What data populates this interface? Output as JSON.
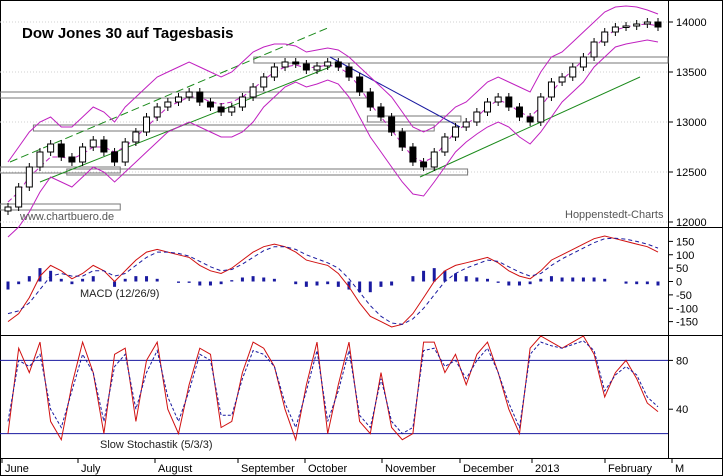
{
  "chart_data": [
    {
      "type": "candlestick",
      "title": "Dow Jones 30 auf Tagesbasis",
      "watermark_left": "www.chartbuero.de",
      "watermark_right": "Hoppenstedt-Charts",
      "yticks": [
        12000,
        12500,
        13000,
        13500,
        14000
      ],
      "ylim": [
        11950,
        14220
      ],
      "xlabels": [
        "June",
        "July",
        "August",
        "September",
        "October",
        "November",
        "December",
        "2013",
        "February",
        "M"
      ],
      "series": [
        {
          "name": "price",
          "values": [
            12150,
            12350,
            12550,
            12700,
            12780,
            12650,
            12600,
            12750,
            12820,
            12700,
            12600,
            12800,
            12900,
            13050,
            13150,
            13200,
            13250,
            13300,
            13200,
            13150,
            13100,
            13150,
            13250,
            13350,
            13450,
            13550,
            13600,
            13580,
            13520,
            13560,
            13600,
            13550,
            13450,
            13300,
            13150,
            13050,
            12900,
            12750,
            12600,
            12550,
            12700,
            12850,
            12950,
            13000,
            13100,
            13200,
            13250,
            13150,
            13050,
            13000,
            13250,
            13400,
            13450,
            13550,
            13650,
            13800,
            13900,
            13950,
            13960,
            13980,
            14000,
            13950
          ]
        },
        {
          "name": "bollinger_upper",
          "values": [
            12600,
            12750,
            12900,
            13000,
            13050,
            12950,
            12950,
            13050,
            13150,
            13100,
            13000,
            13150,
            13250,
            13350,
            13450,
            13500,
            13550,
            13600,
            13550,
            13500,
            13450,
            13500,
            13600,
            13700,
            13750,
            13780,
            13780,
            13760,
            13700,
            13720,
            13740,
            13720,
            13650,
            13550,
            13450,
            13350,
            13250,
            13100,
            12950,
            12900,
            12950,
            13050,
            13150,
            13200,
            13300,
            13400,
            13450,
            13400,
            13350,
            13300,
            13500,
            13650,
            13700,
            13800,
            13900,
            14000,
            14100,
            14150,
            14160,
            14150,
            14120,
            14080
          ]
        },
        {
          "name": "bollinger_lower",
          "values": [
            11850,
            11950,
            12100,
            12300,
            12450,
            12400,
            12350,
            12450,
            12550,
            12500,
            12400,
            12500,
            12600,
            12700,
            12800,
            12900,
            12950,
            13000,
            12950,
            12900,
            12850,
            12850,
            12900,
            13000,
            13150,
            13250,
            13350,
            13400,
            13350,
            13380,
            13420,
            13380,
            13250,
            13050,
            12850,
            12700,
            12550,
            12400,
            12280,
            12260,
            12400,
            12550,
            12700,
            12800,
            12880,
            12950,
            13000,
            12950,
            12850,
            12780,
            12900,
            13050,
            13200,
            13300,
            13400,
            13550,
            13650,
            13750,
            13780,
            13800,
            13820,
            13800
          ]
        },
        {
          "name": "moving_average",
          "values": [
            12200,
            12300,
            12450,
            12550,
            12650,
            12650,
            12630,
            12680,
            12750,
            12750,
            12700,
            12750,
            12850,
            12950,
            13050,
            13150,
            13200,
            13250,
            13250,
            13200,
            13180,
            13200,
            13250,
            13330,
            13420,
            13500,
            13550,
            13570,
            13540,
            13550,
            13570,
            13550,
            13480,
            13350,
            13180,
            13050,
            12920,
            12780,
            12650,
            12600,
            12650,
            12780,
            12900,
            12980,
            13050,
            13150,
            13220,
            13180,
            13100,
            13050,
            13150,
            13300,
            13420,
            13520,
            13620,
            13740,
            13850,
            13920,
            13950,
            13970,
            13980,
            13960
          ]
        }
      ]
    },
    {
      "type": "line",
      "title": "MACD (12/26/9)",
      "yticks": [
        150,
        100,
        50,
        0,
        -50,
        -100,
        -150
      ],
      "ylim": [
        -200,
        200
      ],
      "series": [
        {
          "name": "macd",
          "values": [
            -150,
            -120,
            -60,
            20,
            60,
            40,
            10,
            30,
            60,
            40,
            0,
            40,
            80,
            110,
            120,
            110,
            100,
            90,
            60,
            40,
            30,
            50,
            80,
            110,
            130,
            140,
            130,
            110,
            80,
            70,
            60,
            30,
            -20,
            -80,
            -130,
            -150,
            -170,
            -160,
            -120,
            -60,
            0,
            40,
            60,
            70,
            80,
            90,
            70,
            40,
            20,
            10,
            40,
            80,
            100,
            120,
            140,
            160,
            170,
            160,
            150,
            140,
            130,
            110
          ]
        },
        {
          "name": "signal",
          "values": [
            -120,
            -110,
            -80,
            -30,
            20,
            30,
            20,
            20,
            40,
            40,
            20,
            30,
            60,
            90,
            110,
            110,
            105,
            95,
            75,
            55,
            40,
            45,
            65,
            90,
            115,
            130,
            130,
            120,
            100,
            85,
            70,
            50,
            10,
            -40,
            -90,
            -130,
            -155,
            -160,
            -140,
            -100,
            -50,
            0,
            30,
            50,
            65,
            80,
            75,
            55,
            35,
            20,
            30,
            60,
            85,
            105,
            125,
            145,
            160,
            162,
            158,
            150,
            140,
            125
          ]
        },
        {
          "name": "histogram",
          "values": [
            -30,
            -10,
            20,
            50,
            40,
            10,
            -10,
            10,
            20,
            0,
            -20,
            10,
            20,
            20,
            10,
            0,
            -5,
            -5,
            -15,
            -15,
            -10,
            5,
            15,
            20,
            15,
            10,
            0,
            -10,
            -20,
            -15,
            -10,
            -20,
            -30,
            -40,
            -40,
            -20,
            -15,
            0,
            20,
            40,
            50,
            40,
            30,
            20,
            15,
            10,
            -5,
            -15,
            -15,
            -10,
            10,
            20,
            15,
            15,
            15,
            15,
            10,
            0,
            -8,
            -10,
            -10,
            -15
          ]
        }
      ]
    },
    {
      "type": "line",
      "title": "Slow Stochastik (5/3/3)",
      "yticks": [
        80,
        40
      ],
      "hlines": [
        80,
        20
      ],
      "ylim": [
        0,
        100
      ],
      "series": [
        {
          "name": "k",
          "values": [
            20,
            90,
            70,
            95,
            30,
            15,
            60,
            95,
            70,
            20,
            85,
            90,
            30,
            80,
            95,
            40,
            20,
            60,
            90,
            85,
            25,
            30,
            70,
            95,
            90,
            75,
            40,
            15,
            60,
            95,
            20,
            60,
            95,
            30,
            20,
            70,
            25,
            15,
            20,
            95,
            95,
            70,
            85,
            60,
            85,
            95,
            70,
            40,
            20,
            90,
            100,
            95,
            90,
            95,
            100,
            85,
            50,
            70,
            80,
            65,
            45,
            38
          ]
        },
        {
          "name": "d",
          "values": [
            30,
            80,
            75,
            85,
            40,
            25,
            55,
            85,
            70,
            30,
            75,
            85,
            40,
            70,
            88,
            50,
            30,
            55,
            85,
            80,
            35,
            35,
            65,
            88,
            85,
            75,
            45,
            25,
            55,
            88,
            30,
            55,
            88,
            35,
            25,
            65,
            30,
            20,
            25,
            88,
            90,
            75,
            80,
            65,
            80,
            90,
            70,
            45,
            25,
            85,
            95,
            92,
            90,
            93,
            96,
            88,
            55,
            68,
            75,
            68,
            50,
            42
          ]
        }
      ]
    }
  ]
}
